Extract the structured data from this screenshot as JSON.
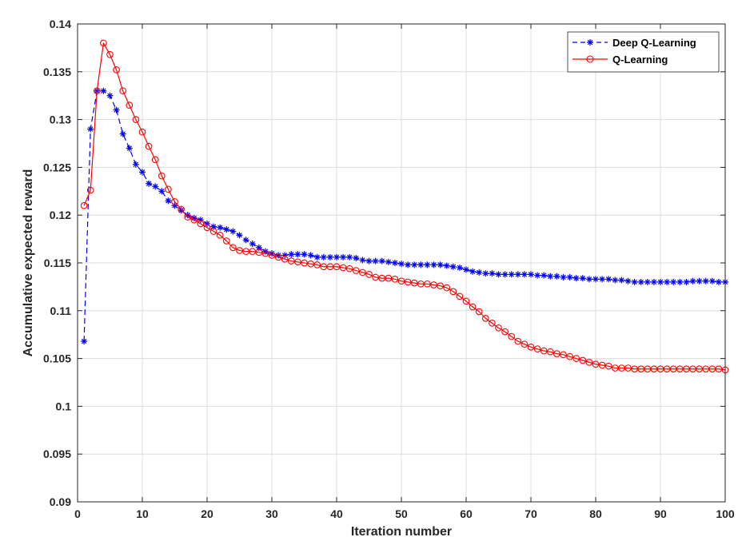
{
  "chart_data": {
    "type": "line",
    "xlabel": "Iteration number",
    "ylabel": "Accumulative expected reward",
    "xlim": [
      0,
      100
    ],
    "ylim": [
      0.09,
      0.14
    ],
    "xticks": [
      0,
      10,
      20,
      30,
      40,
      50,
      60,
      70,
      80,
      90,
      100
    ],
    "xtick_labels": [
      "0",
      "10",
      "20",
      "30",
      "40",
      "50",
      "60",
      "70",
      "80",
      "90",
      "100"
    ],
    "yticks": [
      0.09,
      0.095,
      0.1,
      0.105,
      0.11,
      0.115,
      0.12,
      0.125,
      0.13,
      0.135,
      0.14
    ],
    "ytick_labels": [
      "0.09",
      "0.095",
      "0.1",
      "0.105",
      "0.11",
      "0.115",
      "0.12",
      "0.125",
      "0.13",
      "0.135",
      "0.14"
    ],
    "grid": true,
    "legend_position": "top-right",
    "series": [
      {
        "name": "Deep Q-Learning",
        "color": "#0000ff",
        "line_style": "dashed",
        "marker": "asterisk",
        "x": [
          1,
          2,
          3,
          4,
          5,
          6,
          7,
          8,
          9,
          10,
          11,
          12,
          13,
          14,
          15,
          16,
          17,
          18,
          19,
          20,
          21,
          22,
          23,
          24,
          25,
          26,
          27,
          28,
          29,
          30,
          31,
          32,
          33,
          34,
          35,
          36,
          37,
          38,
          39,
          40,
          41,
          42,
          43,
          44,
          45,
          46,
          47,
          48,
          49,
          50,
          51,
          52,
          53,
          54,
          55,
          56,
          57,
          58,
          59,
          60,
          61,
          62,
          63,
          64,
          65,
          66,
          67,
          68,
          69,
          70,
          71,
          72,
          73,
          74,
          75,
          76,
          77,
          78,
          79,
          80,
          81,
          82,
          83,
          84,
          85,
          86,
          87,
          88,
          89,
          90,
          91,
          92,
          93,
          94,
          95,
          96,
          97,
          98,
          99,
          100
        ],
        "values": [
          0.1068,
          0.129,
          0.133,
          0.133,
          0.1325,
          0.131,
          0.1285,
          0.127,
          0.1253,
          0.1245,
          0.1233,
          0.123,
          0.1225,
          0.1215,
          0.121,
          0.1205,
          0.12,
          0.1197,
          0.1195,
          0.1191,
          0.1188,
          0.1187,
          0.1185,
          0.1183,
          0.1179,
          0.1174,
          0.117,
          0.1166,
          0.1162,
          0.116,
          0.1158,
          0.1158,
          0.1159,
          0.1159,
          0.1159,
          0.1158,
          0.1156,
          0.1156,
          0.1156,
          0.1156,
          0.1156,
          0.1156,
          0.1155,
          0.1153,
          0.1152,
          0.1152,
          0.1152,
          0.1151,
          0.115,
          0.1149,
          0.1148,
          0.1148,
          0.1148,
          0.1148,
          0.1148,
          0.1148,
          0.1147,
          0.1146,
          0.1145,
          0.1143,
          0.1141,
          0.114,
          0.1139,
          0.1139,
          0.1138,
          0.1138,
          0.1138,
          0.1138,
          0.1138,
          0.1138,
          0.1137,
          0.1137,
          0.1136,
          0.1136,
          0.1135,
          0.1135,
          0.1134,
          0.1134,
          0.1133,
          0.1133,
          0.1133,
          0.1133,
          0.1132,
          0.1132,
          0.1131,
          0.113,
          0.113,
          0.113,
          0.113,
          0.113,
          0.113,
          0.113,
          0.113,
          0.113,
          0.1131,
          0.1131,
          0.1131,
          0.1131,
          0.113,
          0.113
        ]
      },
      {
        "name": "Q-Learning",
        "color": "#ff0000",
        "line_style": "solid",
        "marker": "circle",
        "x": [
          1,
          2,
          3,
          4,
          5,
          6,
          7,
          8,
          9,
          10,
          11,
          12,
          13,
          14,
          15,
          16,
          17,
          18,
          19,
          20,
          21,
          22,
          23,
          24,
          25,
          26,
          27,
          28,
          29,
          30,
          31,
          32,
          33,
          34,
          35,
          36,
          37,
          38,
          39,
          40,
          41,
          42,
          43,
          44,
          45,
          46,
          47,
          48,
          49,
          50,
          51,
          52,
          53,
          54,
          55,
          56,
          57,
          58,
          59,
          60,
          61,
          62,
          63,
          64,
          65,
          66,
          67,
          68,
          69,
          70,
          71,
          72,
          73,
          74,
          75,
          76,
          77,
          78,
          79,
          80,
          81,
          82,
          83,
          84,
          85,
          86,
          87,
          88,
          89,
          90,
          91,
          92,
          93,
          94,
          95,
          96,
          97,
          98,
          99,
          100
        ],
        "values": [
          0.121,
          0.1226,
          0.133,
          0.138,
          0.1368,
          0.1352,
          0.133,
          0.1315,
          0.13,
          0.1287,
          0.1272,
          0.1258,
          0.1241,
          0.1227,
          0.1214,
          0.1206,
          0.1198,
          0.1195,
          0.1191,
          0.1187,
          0.1183,
          0.1179,
          0.1173,
          0.1166,
          0.1163,
          0.1162,
          0.1162,
          0.1161,
          0.116,
          0.1158,
          0.1156,
          0.1154,
          0.1152,
          0.1151,
          0.115,
          0.1149,
          0.1148,
          0.1146,
          0.1146,
          0.1146,
          0.1145,
          0.1144,
          0.1142,
          0.114,
          0.1138,
          0.1135,
          0.1134,
          0.1134,
          0.1133,
          0.1131,
          0.113,
          0.1129,
          0.1128,
          0.1128,
          0.1127,
          0.1126,
          0.1124,
          0.112,
          0.1115,
          0.111,
          0.1104,
          0.1099,
          0.1092,
          0.1087,
          0.1082,
          0.1078,
          0.1073,
          0.1068,
          0.1065,
          0.1062,
          0.106,
          0.1058,
          0.1057,
          0.1055,
          0.1054,
          0.1052,
          0.105,
          0.1048,
          0.1046,
          0.1044,
          0.1043,
          0.1042,
          0.104,
          0.104,
          0.104,
          0.1039,
          0.1039,
          0.1039,
          0.1039,
          0.1039,
          0.1039,
          0.1039,
          0.1039,
          0.1039,
          0.1039,
          0.1039,
          0.1039,
          0.1039,
          0.1039,
          0.1038
        ]
      }
    ]
  }
}
